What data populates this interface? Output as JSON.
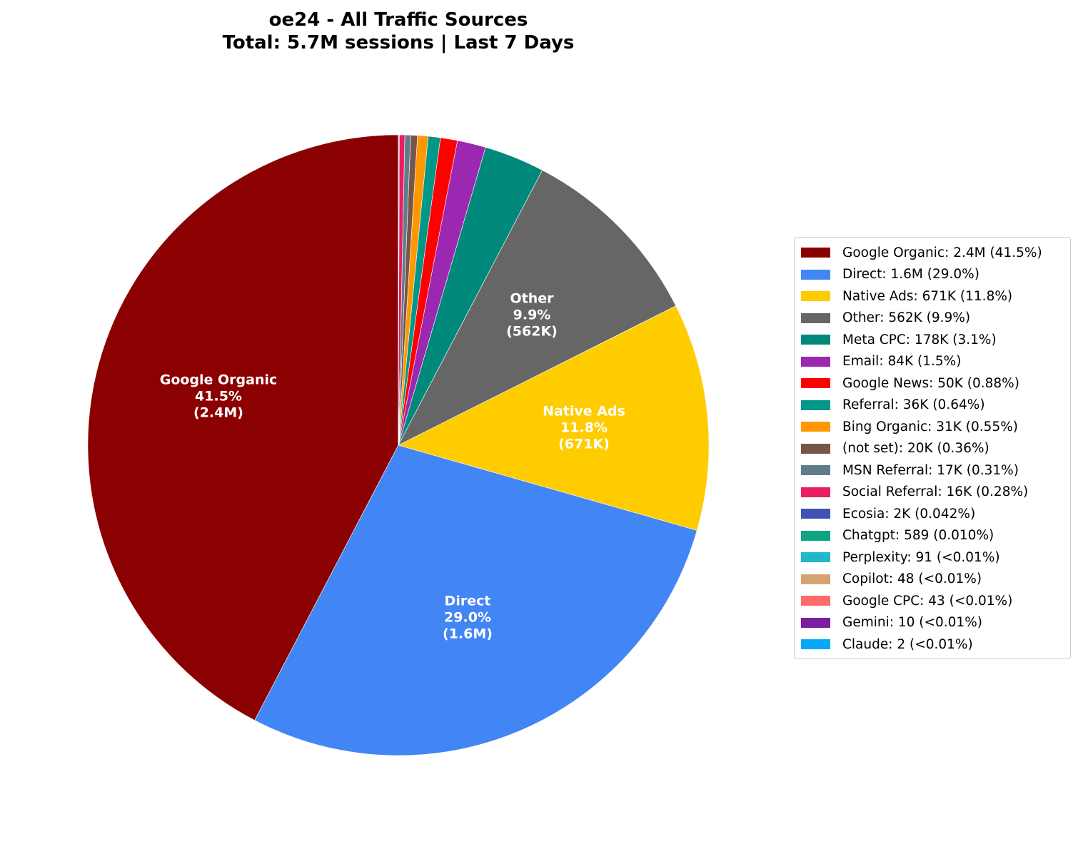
{
  "title": {
    "line1": "oe24 - All Traffic Sources",
    "line2": "Total: 5.7M sessions | Last 7 Days"
  },
  "chart_data": {
    "type": "pie",
    "title": "oe24 - All Traffic Sources\nTotal: 5.7M sessions | Last 7 Days",
    "start_angle": 90,
    "direction": "counterclockwise",
    "legend_position": "right",
    "slices": [
      {
        "name": "Google Organic",
        "value": 2400000,
        "display": "2.4M",
        "pct": 41.5,
        "pct_label": "41.5%",
        "color": "#8b0000",
        "label": true
      },
      {
        "name": "Direct",
        "value": 1600000,
        "display": "1.6M",
        "pct": 29.0,
        "pct_label": "29.0%",
        "color": "#4285f4",
        "label": true
      },
      {
        "name": "Native Ads",
        "value": 671000,
        "display": "671K",
        "pct": 11.8,
        "pct_label": "11.8%",
        "color": "#ffcc00",
        "label": true
      },
      {
        "name": "Other",
        "value": 562000,
        "display": "562K",
        "pct": 9.9,
        "pct_label": "9.9%",
        "color": "#666666",
        "label": true
      },
      {
        "name": "Meta CPC",
        "value": 178000,
        "display": "178K",
        "pct": 3.1,
        "pct_label": "3.1%",
        "color": "#00897b",
        "label": false
      },
      {
        "name": "Email",
        "value": 84000,
        "display": "84K",
        "pct": 1.5,
        "pct_label": "1.5%",
        "color": "#9c27b0",
        "label": false
      },
      {
        "name": "Google News",
        "value": 50000,
        "display": "50K",
        "pct": 0.88,
        "pct_label": "0.88%",
        "color": "#ff0000",
        "label": false
      },
      {
        "name": "Referral",
        "value": 36000,
        "display": "36K",
        "pct": 0.64,
        "pct_label": "0.64%",
        "color": "#009688",
        "label": false
      },
      {
        "name": "Bing Organic",
        "value": 31000,
        "display": "31K",
        "pct": 0.55,
        "pct_label": "0.55%",
        "color": "#ff9800",
        "label": false
      },
      {
        "name": "(not set)",
        "value": 20000,
        "display": "20K",
        "pct": 0.36,
        "pct_label": "0.36%",
        "color": "#795548",
        "label": false
      },
      {
        "name": "MSN Referral",
        "value": 17000,
        "display": "17K",
        "pct": 0.31,
        "pct_label": "0.31%",
        "color": "#607d8b",
        "label": false
      },
      {
        "name": "Social Referral",
        "value": 16000,
        "display": "16K",
        "pct": 0.28,
        "pct_label": "0.28%",
        "color": "#e91e63",
        "label": false
      },
      {
        "name": "Ecosia",
        "value": 2000,
        "display": "2K",
        "pct": 0.042,
        "pct_label": "0.042%",
        "color": "#3f51b5",
        "label": false
      },
      {
        "name": "Chatgpt",
        "value": 589,
        "display": "589",
        "pct": 0.01,
        "pct_label": "0.010%",
        "color": "#10a37f",
        "label": false
      },
      {
        "name": "Perplexity",
        "value": 91,
        "display": "91",
        "pct": 0.0016,
        "pct_label": "<0.01%",
        "color": "#20b8cd",
        "label": false
      },
      {
        "name": "Copilot",
        "value": 48,
        "display": "48",
        "pct": 0.0008,
        "pct_label": "<0.01%",
        "color": "#d4a373",
        "label": false
      },
      {
        "name": "Google CPC",
        "value": 43,
        "display": "43",
        "pct": 0.0008,
        "pct_label": "<0.01%",
        "color": "#ff6b6b",
        "label": false
      },
      {
        "name": "Gemini",
        "value": 10,
        "display": "10",
        "pct": 0.0002,
        "pct_label": "<0.01%",
        "color": "#7b1fa2",
        "label": false
      },
      {
        "name": "Claude",
        "value": 2,
        "display": "2",
        "pct": 4e-05,
        "pct_label": "<0.01%",
        "color": "#03a9f4",
        "label": false
      }
    ]
  },
  "legend": {
    "items": [
      "Google Organic: 2.4M (41.5%)",
      "Direct: 1.6M (29.0%)",
      "Native Ads: 671K (11.8%)",
      "Other: 562K (9.9%)",
      "Meta CPC: 178K (3.1%)",
      "Email: 84K (1.5%)",
      "Google News: 50K (0.88%)",
      "Referral: 36K (0.64%)",
      "Bing Organic: 31K (0.55%)",
      "(not set): 20K (0.36%)",
      "MSN Referral: 17K (0.31%)",
      "Social Referral: 16K (0.28%)",
      "Ecosia: 2K (0.042%)",
      "Chatgpt: 589 (0.010%)",
      "Perplexity: 91 (<0.01%)",
      "Copilot: 48 (<0.01%)",
      "Google CPC: 43 (<0.01%)",
      "Gemini: 10 (<0.01%)",
      "Claude: 2 (<0.01%)"
    ]
  },
  "slice_labels": [
    {
      "name": "Google Organic",
      "pct": "41.5%",
      "value": "(2.4M)"
    },
    {
      "name": "Direct",
      "pct": "29.0%",
      "value": "(1.6M)"
    },
    {
      "name": "Native Ads",
      "pct": "11.8%",
      "value": "(671K)"
    },
    {
      "name": "Other",
      "pct": "9.9%",
      "value": "(562K)"
    }
  ]
}
